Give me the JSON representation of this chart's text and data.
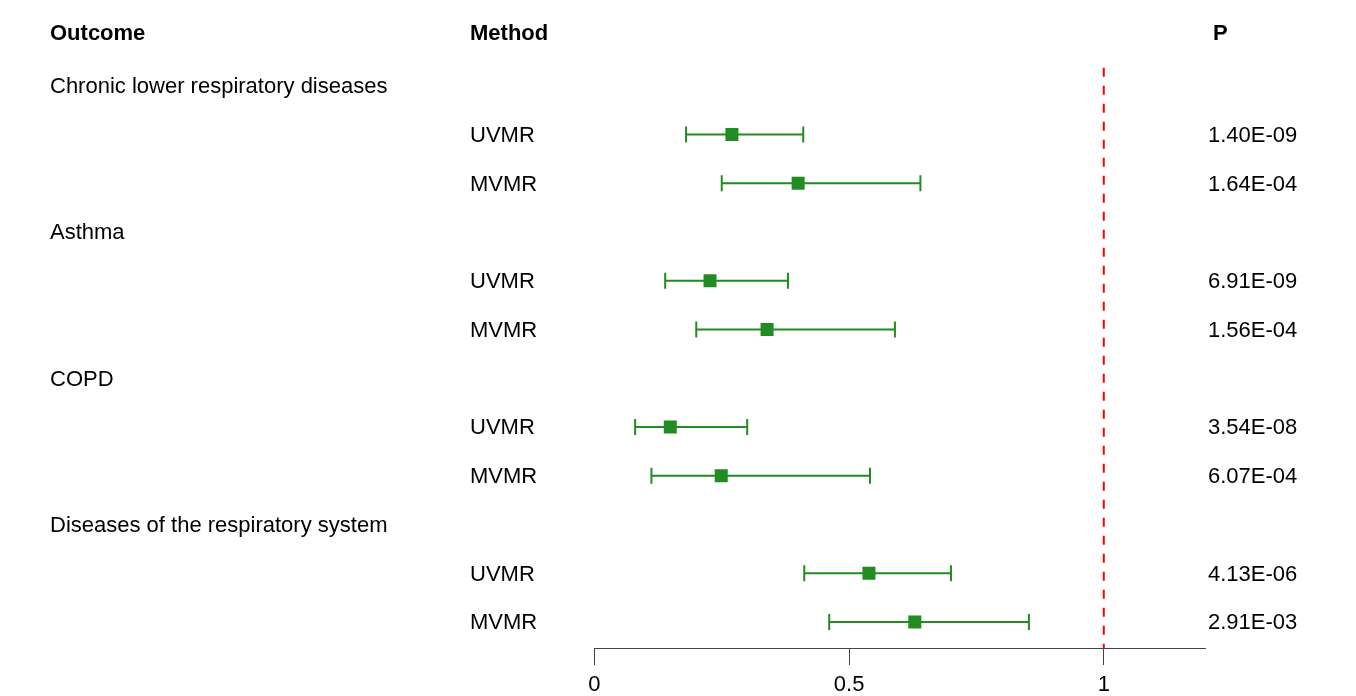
{
  "chart_data": {
    "type": "scatter",
    "orientation": "horizontal",
    "categories": [
      null,
      "UVMR",
      "MVMR",
      null,
      "UVMR",
      "MVMR",
      null,
      "UVMR",
      "MVMR",
      null,
      "UVMR",
      "MVMR"
    ],
    "y2_categories": [
      null,
      "1.40E-09",
      "1.64E-04",
      null,
      "6.91E-09",
      "1.56E-04",
      null,
      "3.54E-08",
      "6.07E-04",
      null,
      "4.13E-06",
      "2.91E-03"
    ],
    "series": [
      {
        "color": "#228b22",
        "values": [
          null,
          0.27,
          0.4,
          null,
          0.227,
          0.339,
          null,
          0.149,
          0.249,
          null,
          0.539,
          0.629
        ],
        "errors": [
          null,
          [
            0.18,
            0.41
          ],
          [
            0.25,
            0.64
          ],
          null,
          [
            0.139,
            0.38
          ],
          [
            0.2,
            0.59
          ],
          null,
          [
            0.08,
            0.3
          ],
          [
            0.112,
            0.541
          ],
          null,
          [
            0.412,
            0.7
          ],
          [
            0.461,
            0.853
          ]
        ]
      }
    ],
    "marker": "square",
    "xlim": [
      0,
      1.2
    ],
    "xticks": [
      0,
      0.5,
      1
    ],
    "ref_lines": [
      {
        "axis": "x",
        "value": 1,
        "color": "#ff0000",
        "line_style": "dashed"
      }
    ],
    "ylabel": "Method",
    "annotations": [
      "Outcome",
      "Chronic lower respiratory diseases",
      "Asthma",
      "COPD",
      "Diseases of the respiratory system"
    ],
    "y2label": "P",
    "tick_labels": "x"
  }
}
